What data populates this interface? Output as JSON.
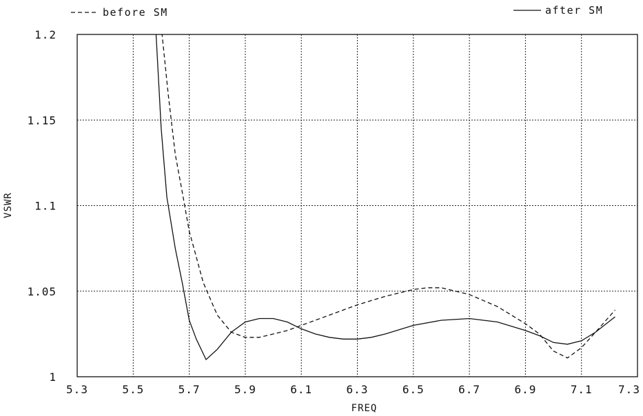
{
  "chart_data": {
    "type": "line",
    "xlabel": "FREQ",
    "ylabel": "VSWR",
    "xlim": [
      5.3,
      7.3
    ],
    "ylim": [
      1.0,
      1.2
    ],
    "x_ticks": [
      "5.3",
      "5.5",
      "5.7",
      "5.9",
      "6.1",
      "6.3",
      "6.5",
      "6.7",
      "6.9",
      "7.1",
      "7.3"
    ],
    "y_ticks": [
      "1",
      "1.05",
      "1.1",
      "1.15",
      "1.2"
    ],
    "x_tick_values": [
      5.3,
      5.5,
      5.7,
      5.9,
      6.1,
      6.3,
      6.5,
      6.7,
      6.9,
      7.1,
      7.3
    ],
    "y_tick_values": [
      1.0,
      1.05,
      1.1,
      1.15,
      1.2
    ],
    "grid": true,
    "legend": [
      {
        "label": "before SM",
        "style": "dashed",
        "position": "top-left"
      },
      {
        "label": "after SM",
        "style": "solid",
        "position": "top-right"
      }
    ],
    "series": [
      {
        "name": "before SM",
        "style": "dashed",
        "x": [
          5.6,
          5.625,
          5.65,
          5.675,
          5.7,
          5.725,
          5.75,
          5.8,
          5.85,
          5.9,
          5.95,
          6.0,
          6.05,
          6.1,
          6.2,
          6.3,
          6.4,
          6.5,
          6.55,
          6.6,
          6.7,
          6.8,
          6.9,
          6.95,
          7.0,
          7.05,
          7.1,
          7.15,
          7.22
        ],
        "y": [
          1.205,
          1.165,
          1.13,
          1.108,
          1.085,
          1.07,
          1.055,
          1.036,
          1.026,
          1.023,
          1.023,
          1.025,
          1.027,
          1.03,
          1.036,
          1.042,
          1.047,
          1.051,
          1.052,
          1.052,
          1.048,
          1.041,
          1.031,
          1.025,
          1.015,
          1.011,
          1.017,
          1.026,
          1.039
        ]
      },
      {
        "name": "after SM",
        "style": "solid",
        "x": [
          5.58,
          5.6,
          5.62,
          5.65,
          5.675,
          5.7,
          5.725,
          5.76,
          5.8,
          5.85,
          5.9,
          5.95,
          6.0,
          6.05,
          6.1,
          6.15,
          6.2,
          6.25,
          6.3,
          6.35,
          6.4,
          6.5,
          6.6,
          6.7,
          6.8,
          6.9,
          6.95,
          7.0,
          7.05,
          7.1,
          7.15,
          7.22
        ],
        "y": [
          1.205,
          1.145,
          1.105,
          1.075,
          1.055,
          1.033,
          1.022,
          1.01,
          1.016,
          1.026,
          1.032,
          1.034,
          1.034,
          1.032,
          1.028,
          1.025,
          1.023,
          1.022,
          1.022,
          1.023,
          1.025,
          1.03,
          1.033,
          1.034,
          1.032,
          1.027,
          1.024,
          1.02,
          1.019,
          1.021,
          1.026,
          1.035
        ]
      }
    ]
  }
}
